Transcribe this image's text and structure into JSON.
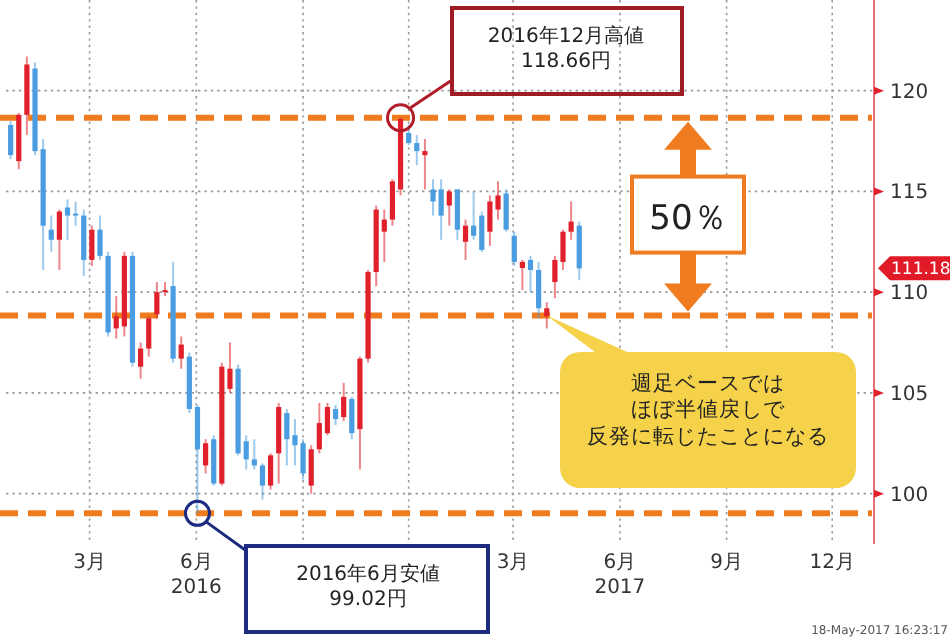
{
  "chart_data": {
    "type": "candlestick",
    "x": [
      "2015-12-24",
      "2015-12-31",
      "2016-01-07",
      "2016-01-14",
      "2016-01-21",
      "2016-01-28",
      "2016-02-04",
      "2016-02-11",
      "2016-02-18",
      "2016-02-25",
      "2016-03-03",
      "2016-03-10",
      "2016-03-17",
      "2016-03-24",
      "2016-03-31",
      "2016-04-07",
      "2016-04-14",
      "2016-04-21",
      "2016-04-28",
      "2016-05-05",
      "2016-05-12",
      "2016-05-19",
      "2016-05-26",
      "2016-06-02",
      "2016-06-09",
      "2016-06-16",
      "2016-06-23",
      "2016-06-30",
      "2016-07-07",
      "2016-07-14",
      "2016-07-21",
      "2016-07-28",
      "2016-08-04",
      "2016-08-11",
      "2016-08-18",
      "2016-08-25",
      "2016-09-01",
      "2016-09-08",
      "2016-09-15",
      "2016-09-22",
      "2016-09-29",
      "2016-10-06",
      "2016-10-13",
      "2016-10-20",
      "2016-10-27",
      "2016-11-03",
      "2016-11-10",
      "2016-11-17",
      "2016-11-24",
      "2016-12-01",
      "2016-12-08",
      "2016-12-15",
      "2016-12-22",
      "2016-12-29",
      "2017-01-05",
      "2017-01-12",
      "2017-01-19",
      "2017-01-26",
      "2017-02-02",
      "2017-02-09",
      "2017-02-16",
      "2017-02-23",
      "2017-03-02",
      "2017-03-09",
      "2017-03-16",
      "2017-03-23",
      "2017-03-30",
      "2017-04-06",
      "2017-04-13",
      "2017-04-20",
      "2017-04-27"
    ],
    "ohlc": [
      [
        118.3,
        118.5,
        116.6,
        116.8
      ],
      [
        116.5,
        118.9,
        116.1,
        118.8
      ],
      [
        118.8,
        121.7,
        117.8,
        121.3
      ],
      [
        121.1,
        121.4,
        116.8,
        117.0
      ],
      [
        117.1,
        117.6,
        111.1,
        113.3
      ],
      [
        113.1,
        113.8,
        112.0,
        112.6
      ],
      [
        112.6,
        114.1,
        111.1,
        114.0
      ],
      [
        114.2,
        114.6,
        112.6,
        113.8
      ],
      [
        113.9,
        114.5,
        113.3,
        113.8
      ],
      [
        113.8,
        114.1,
        110.8,
        111.6
      ],
      [
        111.6,
        113.3,
        111.3,
        113.1
      ],
      [
        113.1,
        113.8,
        111.6,
        111.8
      ],
      [
        111.8,
        112.0,
        107.8,
        108.0
      ],
      [
        108.2,
        109.8,
        107.7,
        108.8
      ],
      [
        108.3,
        112.0,
        107.8,
        111.8
      ],
      [
        111.8,
        112.0,
        106.3,
        106.5
      ],
      [
        106.3,
        107.5,
        105.7,
        107.2
      ],
      [
        107.2,
        108.8,
        106.8,
        108.7
      ],
      [
        108.9,
        110.5,
        108.7,
        110.0
      ],
      [
        110.0,
        110.5,
        109.8,
        110.1
      ],
      [
        110.3,
        111.5,
        106.5,
        106.7
      ],
      [
        106.7,
        107.8,
        106.2,
        107.4
      ],
      [
        106.8,
        107.0,
        104.0,
        104.2
      ],
      [
        104.3,
        104.4,
        99.02,
        102.2
      ],
      [
        101.4,
        102.7,
        101.0,
        102.5
      ],
      [
        102.7,
        102.9,
        100.4,
        100.5
      ],
      [
        100.5,
        106.5,
        100.4,
        106.3
      ],
      [
        105.2,
        107.5,
        105.0,
        106.2
      ],
      [
        106.2,
        106.4,
        101.9,
        102.0
      ],
      [
        102.6,
        102.9,
        101.2,
        101.7
      ],
      [
        101.7,
        102.7,
        101.2,
        101.4
      ],
      [
        101.4,
        101.5,
        99.7,
        100.4
      ],
      [
        100.4,
        102.0,
        100.2,
        101.9
      ],
      [
        102.0,
        104.5,
        100.5,
        104.3
      ],
      [
        104.0,
        104.2,
        101.4,
        102.7
      ],
      [
        102.9,
        103.7,
        101.4,
        102.4
      ],
      [
        102.5,
        102.7,
        100.7,
        101.0
      ],
      [
        100.4,
        102.4,
        100.0,
        102.2
      ],
      [
        102.2,
        104.5,
        102.0,
        103.5
      ],
      [
        103.0,
        104.5,
        102.9,
        104.3
      ],
      [
        104.2,
        104.4,
        103.4,
        103.7
      ],
      [
        103.8,
        105.5,
        103.6,
        104.8
      ],
      [
        104.7,
        104.8,
        102.7,
        103.0
      ],
      [
        103.2,
        106.8,
        101.2,
        106.7
      ],
      [
        106.7,
        111.1,
        106.5,
        111.0
      ],
      [
        111.0,
        114.3,
        110.3,
        114.1
      ],
      [
        113.0,
        114.1,
        111.5,
        113.6
      ],
      [
        113.6,
        115.6,
        113.3,
        115.5
      ],
      [
        115.1,
        118.66,
        114.8,
        118.6
      ],
      [
        117.9,
        118.3,
        117.3,
        117.4
      ],
      [
        117.4,
        117.8,
        116.3,
        117.0
      ],
      [
        116.8,
        117.6,
        115.1,
        117.0
      ],
      [
        115.1,
        115.6,
        113.8,
        114.5
      ],
      [
        115.1,
        115.6,
        112.6,
        113.8
      ],
      [
        114.3,
        115.1,
        113.3,
        115.0
      ],
      [
        115.1,
        115.1,
        112.6,
        113.1
      ],
      [
        112.5,
        113.6,
        111.6,
        113.3
      ],
      [
        113.3,
        115.0,
        112.6,
        112.8
      ],
      [
        113.8,
        114.0,
        112.0,
        112.1
      ],
      [
        113.0,
        114.8,
        112.3,
        114.5
      ],
      [
        114.1,
        115.5,
        113.6,
        114.8
      ],
      [
        114.9,
        115.1,
        113.0,
        113.1
      ],
      [
        112.8,
        113.0,
        111.3,
        111.5
      ],
      [
        111.2,
        111.6,
        110.1,
        111.5
      ],
      [
        111.6,
        111.8,
        110.0,
        111.1
      ],
      [
        111.1,
        111.5,
        108.7,
        109.2
      ],
      [
        108.8,
        109.5,
        108.2,
        109.2
      ],
      [
        110.5,
        111.8,
        109.7,
        111.6
      ],
      [
        111.5,
        113.1,
        111.1,
        113.0
      ],
      [
        113.0,
        114.5,
        112.6,
        113.5
      ],
      [
        113.3,
        113.5,
        110.6,
        111.18
      ]
    ],
    "xlim": [
      "2015-12-20",
      "2018-01-06"
    ],
    "xticks": [
      {
        "value": "2016-03-01",
        "label": "3月"
      },
      {
        "value": "2016-06-01",
        "label": "6月\n2016"
      },
      {
        "value": "2016-09-01",
        "label": null
      },
      {
        "value": "2016-12-01",
        "label": null
      },
      {
        "value": "2017-03-01",
        "label": "3月"
      },
      {
        "value": "2017-06-01",
        "label": "6月\n2017"
      },
      {
        "value": "2017-09-01",
        "label": "9月"
      },
      {
        "value": "2017-12-01",
        "label": "12月"
      }
    ],
    "ylim": [
      97.5,
      124.5
    ],
    "yticks": [
      100,
      105,
      110,
      115,
      120
    ],
    "grid": true,
    "ref_lines": [
      {
        "axis": "y",
        "value": 118.66,
        "color": "#f07c1f",
        "line_style": "dashed"
      },
      {
        "axis": "y",
        "value": 108.84,
        "color": "#f07c1f",
        "line_style": "dashed"
      },
      {
        "axis": "y",
        "value": 99.02,
        "color": "#f07c1f",
        "line_style": "dashed"
      }
    ],
    "annotations": [
      "2016年12月高値\n118.66円",
      "2016年6月安値\n99.02円",
      {
        "text": "週足ベースではほぼ半値戻しで反発に転じたことになる",
        "x": "2017-03-30",
        "y": 108.84
      },
      "50％",
      "111.18",
      "18-May-2017 16:23:17"
    ]
  }
}
